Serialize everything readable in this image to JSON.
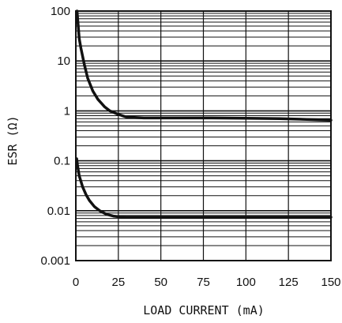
{
  "chart_data": {
    "type": "line",
    "xlabel": "LOAD CURRENT (mA)",
    "ylabel": "ESR (Ω)",
    "xlim": [
      0,
      150
    ],
    "ylim": [
      0.001,
      100
    ],
    "yscale": "log",
    "grid": true,
    "x_ticks": [
      "0",
      "25",
      "50",
      "75",
      "100",
      "125",
      "150"
    ],
    "y_ticks": [
      "0.001",
      "0.01",
      "0.1",
      "1",
      "10",
      "100"
    ],
    "series": [
      {
        "x": [
          0.7,
          2,
          3,
          5,
          7,
          10,
          13,
          17,
          20,
          25,
          30,
          40,
          60,
          80,
          100,
          120,
          150
        ],
        "y": [
          100,
          28,
          18,
          8.5,
          4.5,
          2.5,
          1.7,
          1.2,
          1.0,
          0.85,
          0.75,
          0.72,
          0.72,
          0.72,
          0.71,
          0.7,
          0.65
        ]
      },
      {
        "x": [
          0.5,
          1,
          2,
          4,
          6,
          8,
          11,
          14,
          18,
          22,
          26,
          30,
          40,
          60,
          80,
          100,
          120,
          150
        ],
        "y": [
          0.11,
          0.08,
          0.05,
          0.03,
          0.021,
          0.016,
          0.012,
          0.01,
          0.0085,
          0.0078,
          0.0075,
          0.0074,
          0.0074,
          0.0074,
          0.0074,
          0.0074,
          0.0074,
          0.0074
        ]
      }
    ]
  }
}
